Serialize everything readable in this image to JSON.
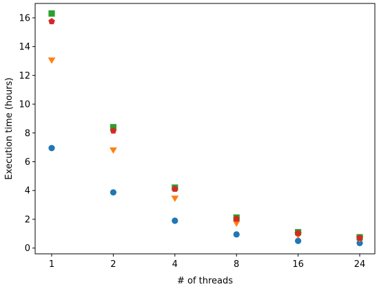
{
  "chart_data": {
    "type": "scatter",
    "title": "",
    "xlabel": "# of threads",
    "ylabel": "Execution time (hours)",
    "categories": [
      "1",
      "2",
      "4",
      "8",
      "16",
      "24"
    ],
    "ylim": [
      -0.4,
      17
    ],
    "yticks": [
      0,
      2,
      4,
      6,
      8,
      10,
      12,
      14,
      16
    ],
    "ytick_labels": [
      "0",
      "2",
      "4",
      "6",
      "8",
      "10",
      "12",
      "14",
      "16"
    ],
    "grid": false,
    "legend": "none",
    "series": [
      {
        "marker": "circle",
        "color": "#1f77b4",
        "values": [
          6.95,
          3.87,
          1.9,
          0.95,
          0.5,
          0.35
        ]
      },
      {
        "marker": "triangle-down",
        "color": "#ff7f0e",
        "values": [
          13.05,
          6.8,
          3.45,
          1.72,
          0.88,
          0.62
        ]
      },
      {
        "marker": "square",
        "color": "#2ca02c",
        "values": [
          16.3,
          8.4,
          4.2,
          2.12,
          1.1,
          0.75
        ]
      },
      {
        "marker": "pentagon",
        "color": "#d62728",
        "values": [
          15.75,
          8.15,
          4.1,
          2.03,
          1.03,
          0.7
        ]
      }
    ]
  }
}
